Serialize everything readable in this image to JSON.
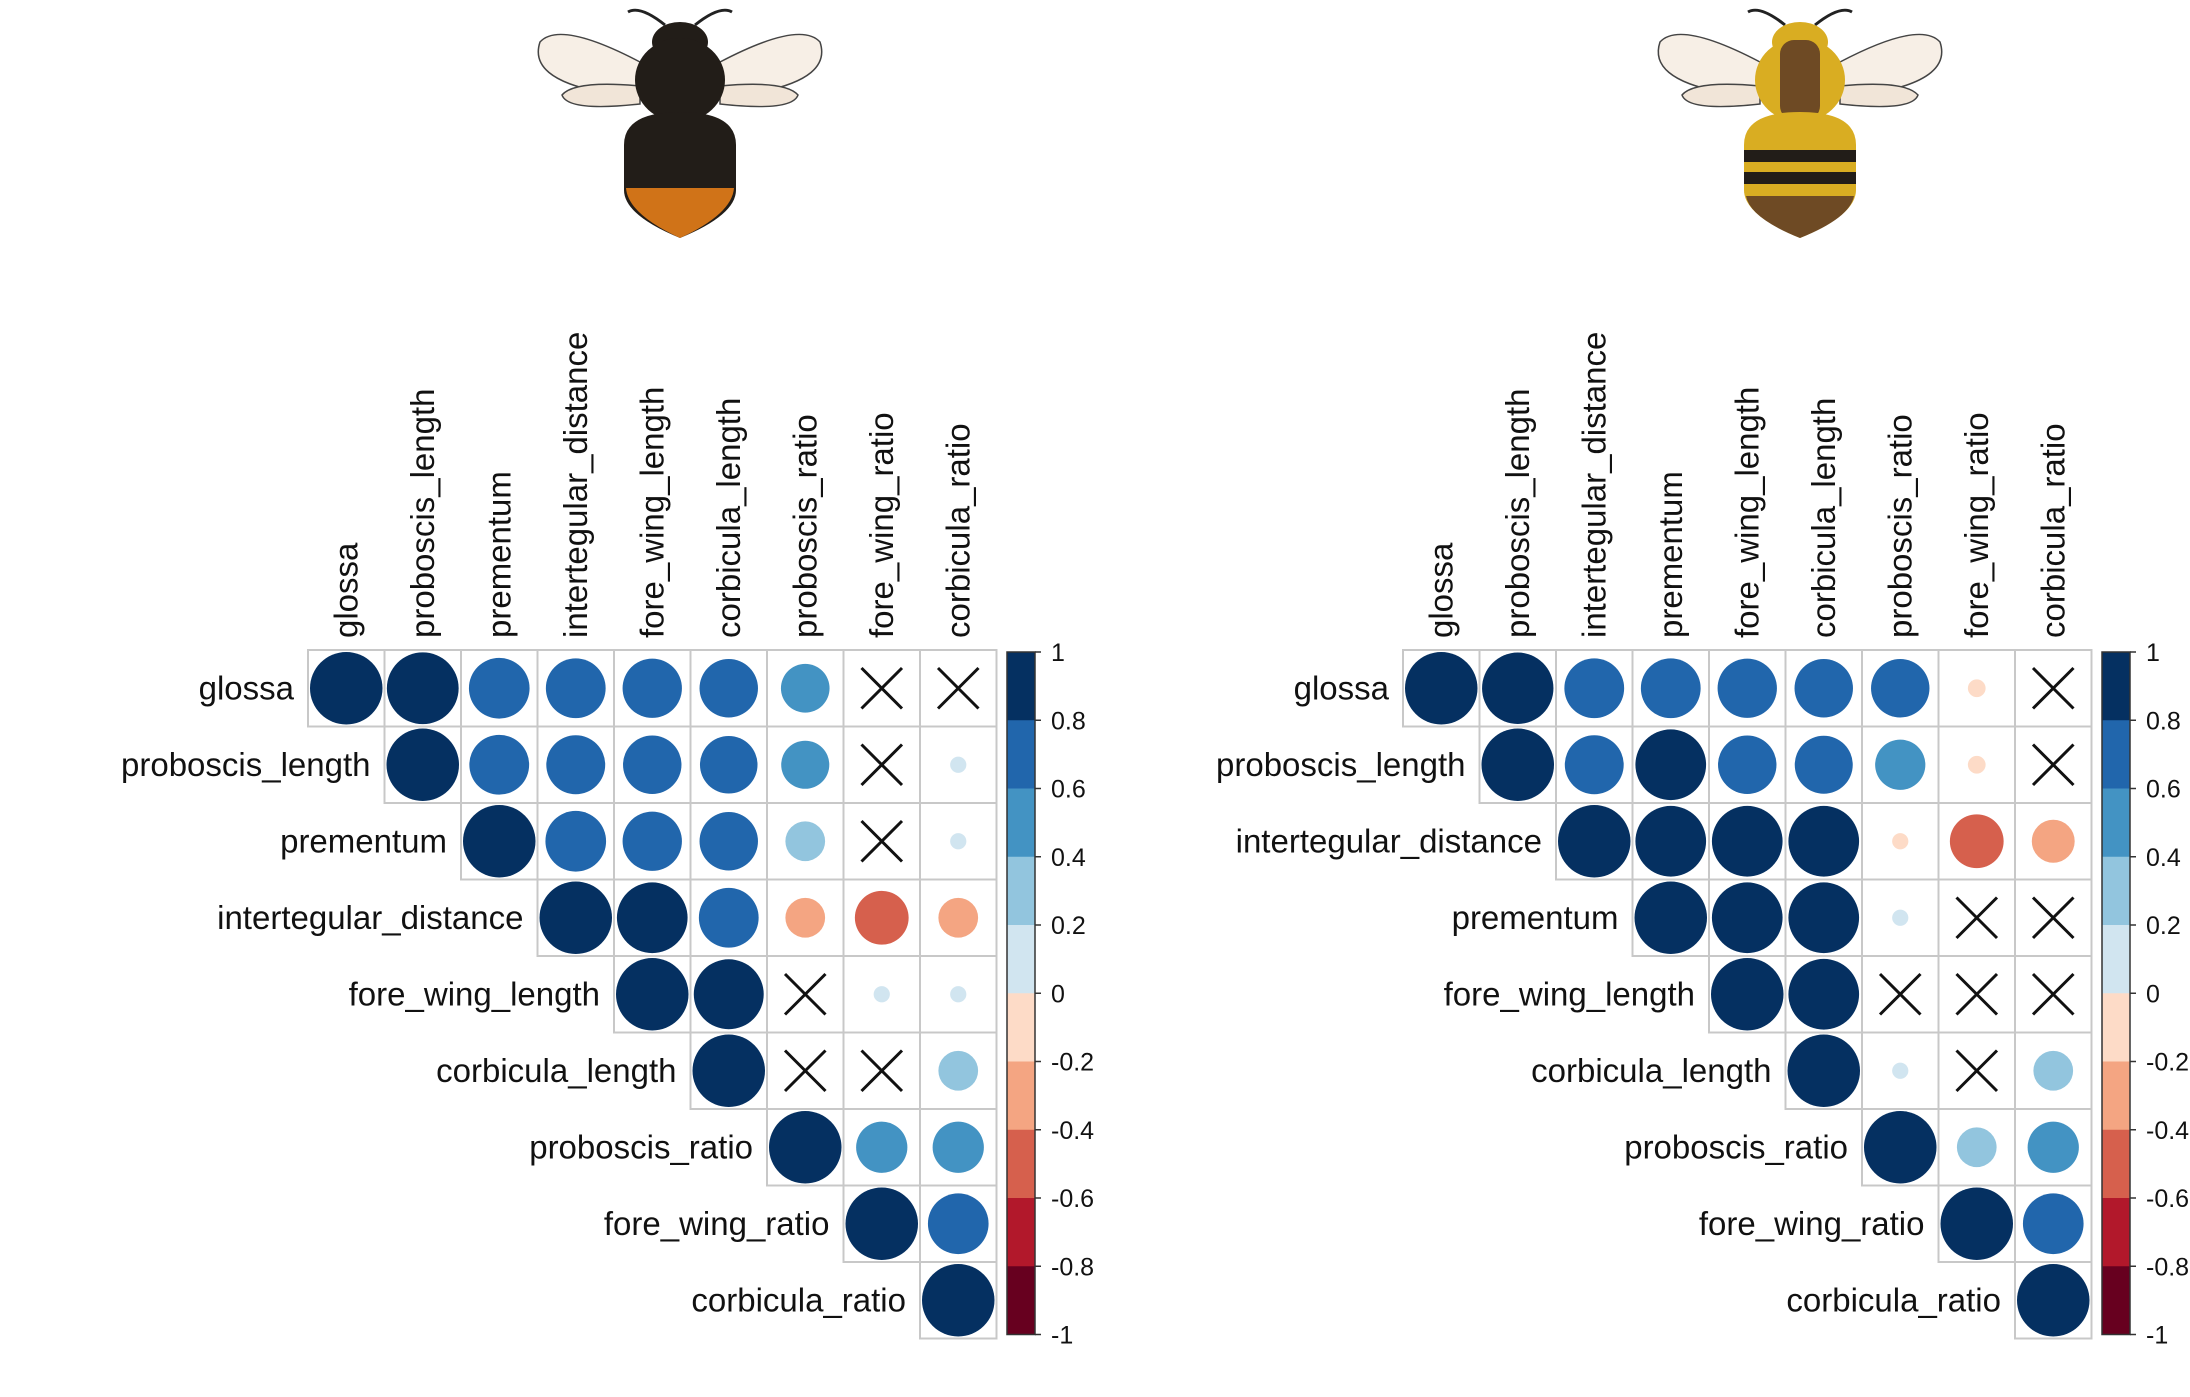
{
  "chart_data": [
    {
      "type": "heatmap",
      "subtype": "correlation-circles-upper-triangle",
      "illustration": "dark bumblebee with orange tail",
      "variables": [
        "glossa",
        "proboscis_length",
        "prementum",
        "intertegular_distance",
        "fore_wing_length",
        "corbicula_length",
        "proboscis_ratio",
        "fore_wing_ratio",
        "corbicula_ratio"
      ],
      "matrix": [
        [
          1,
          0.98,
          0.7,
          0.68,
          0.67,
          0.65,
          0.45,
          null,
          null
        ],
        [
          null,
          1,
          0.68,
          0.66,
          0.65,
          0.63,
          0.44,
          null,
          0.05
        ],
        [
          null,
          null,
          1,
          0.7,
          0.67,
          0.65,
          0.3,
          null,
          0.05
        ],
        [
          null,
          null,
          null,
          1,
          0.95,
          0.68,
          -0.3,
          -0.55,
          -0.3
        ],
        [
          null,
          null,
          null,
          null,
          1,
          0.93,
          null,
          0.05,
          0.05
        ],
        [
          null,
          null,
          null,
          null,
          null,
          1,
          null,
          null,
          0.3
        ],
        [
          null,
          null,
          null,
          null,
          null,
          null,
          1,
          0.5,
          0.5
        ],
        [
          null,
          null,
          null,
          null,
          null,
          null,
          null,
          1,
          0.7
        ],
        [
          null,
          null,
          null,
          null,
          null,
          null,
          null,
          null,
          1
        ]
      ],
      "crossed": [
        [
          0,
          7
        ],
        [
          0,
          8
        ],
        [
          1,
          7
        ],
        [
          2,
          7
        ],
        [
          4,
          6
        ],
        [
          5,
          6
        ],
        [
          5,
          7
        ]
      ],
      "colorbar_ticks": [
        "1",
        "0.8",
        "0.6",
        "0.4",
        "0.2",
        "0",
        "-0.2",
        "-0.4",
        "-0.6",
        "-0.8",
        "-1"
      ],
      "colorbar_range": [
        -1,
        1
      ]
    },
    {
      "type": "heatmap",
      "subtype": "correlation-circles-upper-triangle",
      "illustration": "yellow-striped bumblebee",
      "variables": [
        "glossa",
        "proboscis_length",
        "intertegular_distance",
        "prementum",
        "fore_wing_length",
        "corbicula_length",
        "proboscis_ratio",
        "fore_wing_ratio",
        "corbicula_ratio"
      ],
      "matrix": [
        [
          1,
          0.97,
          0.68,
          0.68,
          0.67,
          0.65,
          0.65,
          -0.06,
          null
        ],
        [
          null,
          1,
          0.66,
          0.95,
          0.65,
          0.64,
          0.48,
          -0.06,
          null
        ],
        [
          null,
          null,
          1,
          0.95,
          0.95,
          0.95,
          -0.05,
          -0.55,
          -0.35
        ],
        [
          null,
          null,
          null,
          1,
          0.95,
          0.95,
          0.05,
          null,
          null
        ],
        [
          null,
          null,
          null,
          null,
          1,
          0.95,
          null,
          null,
          null
        ],
        [
          null,
          null,
          null,
          null,
          null,
          1,
          0.05,
          null,
          0.3
        ],
        [
          null,
          null,
          null,
          null,
          null,
          null,
          1,
          0.3,
          0.5
        ],
        [
          null,
          null,
          null,
          null,
          null,
          null,
          null,
          1,
          0.7
        ],
        [
          null,
          null,
          null,
          null,
          null,
          null,
          null,
          null,
          1
        ]
      ],
      "crossed": [
        [
          0,
          8
        ],
        [
          1,
          8
        ],
        [
          3,
          7
        ],
        [
          3,
          8
        ],
        [
          4,
          6
        ],
        [
          4,
          7
        ],
        [
          4,
          8
        ],
        [
          5,
          7
        ]
      ],
      "colorbar_ticks": [
        "1",
        "0.8",
        "0.6",
        "0.4",
        "0.2",
        "0",
        "-0.2",
        "-0.4",
        "-0.6",
        "-0.8",
        "-1"
      ],
      "colorbar_range": [
        -1,
        1
      ]
    }
  ],
  "palette": [
    "#67001F",
    "#B2182B",
    "#D6604D",
    "#F4A582",
    "#FDDBC7",
    "#F7F7F7",
    "#D1E5F0",
    "#92C5DE",
    "#4393C3",
    "#2166AC",
    "#053061"
  ]
}
